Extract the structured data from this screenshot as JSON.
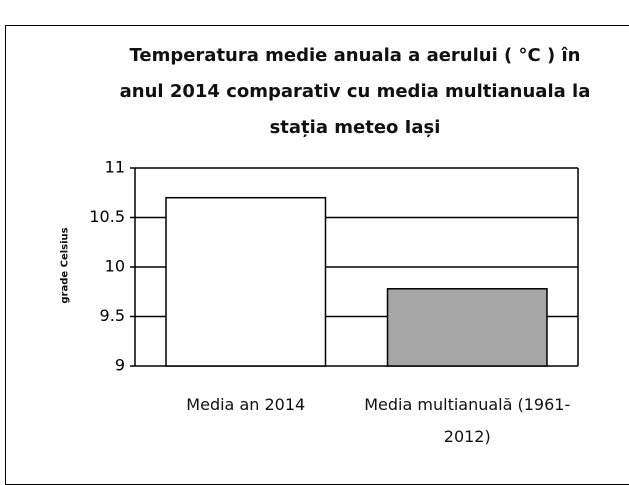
{
  "chart_data": {
    "type": "bar",
    "title": "Temperatura medie anuala a aerului ( °C ) în anul 2014 comparativ cu media multianuala la stația meteo Iași",
    "y_label": "grade Celsius",
    "categories": [
      "Media an 2014",
      "Media multianuală (1961-2012)"
    ],
    "values": [
      10.7,
      9.78
    ],
    "colors": [
      "#ffffff",
      "#a6a6a6"
    ],
    "ylim": [
      9,
      11
    ],
    "yticks": [
      9,
      9.5,
      10,
      10.5,
      11
    ],
    "grid": true
  }
}
